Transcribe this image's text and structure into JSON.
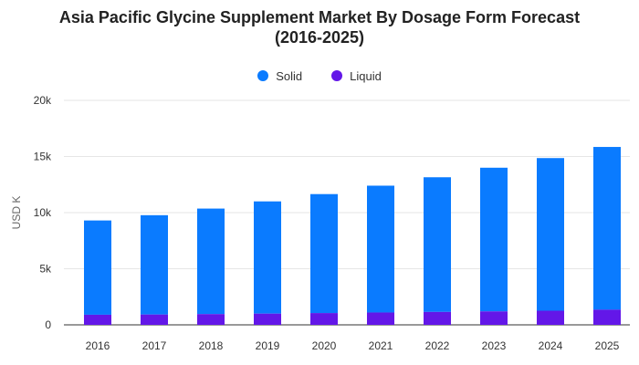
{
  "title_line1": "Asia Pacific Glycine Supplement Market By Dosage Form Forecast",
  "title_line2": "(2016-2025)",
  "colors": {
    "solid": "#0a7bff",
    "liquid": "#6317e8"
  },
  "chart_data": {
    "type": "bar",
    "stacked": true,
    "title": "Asia Pacific Glycine Supplement Market By Dosage Form Forecast (2016-2025)",
    "xlabel": "",
    "ylabel": "USD K",
    "categories": [
      "2016",
      "2017",
      "2018",
      "2019",
      "2020",
      "2021",
      "2022",
      "2023",
      "2024",
      "2025"
    ],
    "series": [
      {
        "name": "Solid",
        "values": [
          8400,
          8850,
          9400,
          10000,
          10600,
          11300,
          12000,
          12800,
          13600,
          14500
        ]
      },
      {
        "name": "Liquid",
        "values": [
          900,
          920,
          960,
          1000,
          1050,
          1100,
          1150,
          1200,
          1260,
          1350
        ]
      }
    ],
    "ylim": [
      0,
      20000
    ],
    "yticks": [
      "0",
      "5k",
      "10k",
      "15k",
      "20k"
    ],
    "grid": true,
    "legend": "top-center"
  }
}
